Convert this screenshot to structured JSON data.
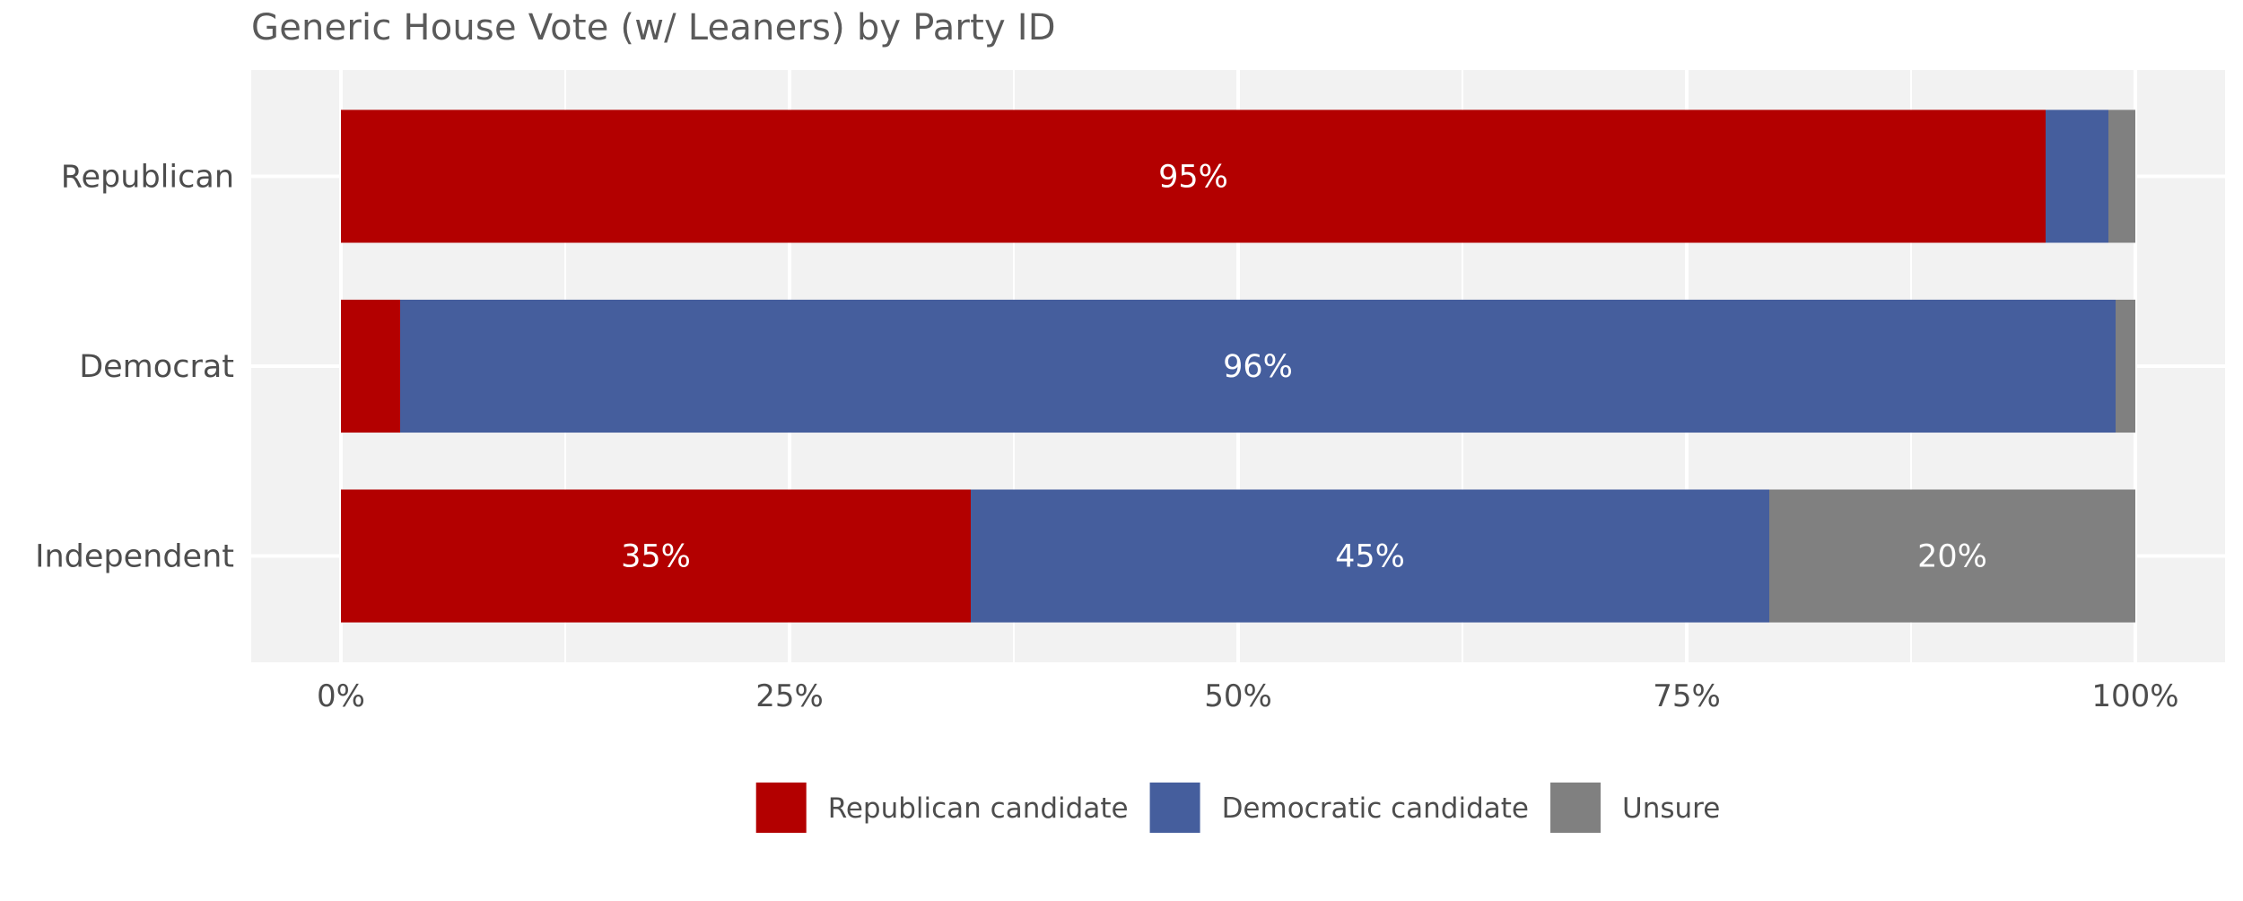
{
  "chart_data": {
    "type": "bar",
    "orientation": "horizontal",
    "stacked": true,
    "title": "Generic House Vote (w/ Leaners) by Party ID",
    "categories": [
      "Republican",
      "Democrat",
      "Independent"
    ],
    "series": [
      {
        "name": "Republican candidate",
        "color": "#b30000",
        "values": [
          95,
          3.3,
          35.1
        ]
      },
      {
        "name": "Democratic candidate",
        "color": "#455e9d",
        "values": [
          3.5,
          95.6,
          44.5
        ]
      },
      {
        "name": "Unsure",
        "color": "#808080",
        "values": [
          1.5,
          1.1,
          20.4
        ]
      }
    ],
    "data_labels": [
      {
        "category": "Republican",
        "series": "Republican candidate",
        "text": "95%"
      },
      {
        "category": "Democrat",
        "series": "Democratic candidate",
        "text": "96%"
      },
      {
        "category": "Independent",
        "series": "Republican candidate",
        "text": "35%"
      },
      {
        "category": "Independent",
        "series": "Democratic candidate",
        "text": "45%"
      },
      {
        "category": "Independent",
        "series": "Unsure",
        "text": "20%"
      }
    ],
    "xlim": [
      0,
      100
    ],
    "x_ticks": [
      0,
      25,
      50,
      75,
      100
    ],
    "x_tick_labels": [
      "0%",
      "25%",
      "50%",
      "75%",
      "100%"
    ],
    "xlabel": "",
    "ylabel": "",
    "grid": true,
    "legend_position": "bottom"
  }
}
